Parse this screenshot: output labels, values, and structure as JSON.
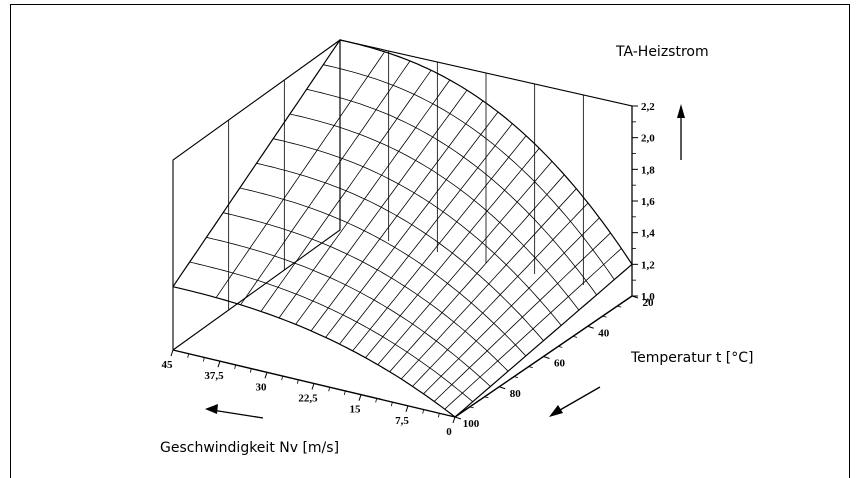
{
  "chart_data": {
    "type": "surface",
    "z_label": "TA-Heizstrom",
    "x_label": "Geschwindigkeit Nv [m/s]",
    "y_label": "Temperatur t [°C]",
    "x_ticks": [
      "45",
      "37,5",
      "30",
      "22,5",
      "15",
      "7,5",
      "0"
    ],
    "x_range": [
      0,
      45
    ],
    "y_ticks": [
      "20",
      "40",
      "60",
      "80",
      "100"
    ],
    "y_range": [
      20,
      100
    ],
    "z_ticks": [
      "2,2",
      "2,0",
      "1,8",
      "1,6",
      "1,4",
      "1,2",
      "1,0"
    ],
    "z_range": [
      1.0,
      2.2
    ],
    "grid": true,
    "surface_corners": [
      {
        "v": 45,
        "t": 20,
        "z": 2.2
      },
      {
        "v": 45,
        "t": 100,
        "z": 1.4
      },
      {
        "v": 0,
        "t": 20,
        "z": 1.2
      },
      {
        "v": 0,
        "t": 100,
        "z": 1.0
      }
    ]
  }
}
